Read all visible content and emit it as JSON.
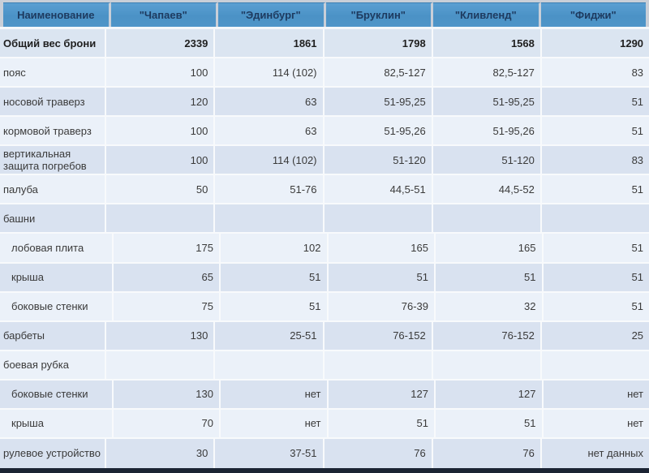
{
  "table": {
    "columns": [
      "Наименование",
      "\"Чапаев\"",
      "\"Эдинбург\"",
      "\"Бруклин\"",
      "\"Кливленд\"",
      "\"Фиджи\""
    ],
    "rows": [
      {
        "label": "Общий вес брони",
        "bold": true,
        "indent": false,
        "values": [
          "2339",
          "1861",
          "1798",
          "1568",
          "1290"
        ]
      },
      {
        "label": "пояс",
        "bold": false,
        "indent": false,
        "values": [
          "100",
          "114 (102)",
          "82,5-127",
          "82,5-127",
          "83"
        ]
      },
      {
        "label": "носовой траверз",
        "bold": false,
        "indent": false,
        "values": [
          "120",
          "63",
          "51-95,25",
          "51-95,25",
          "51"
        ]
      },
      {
        "label": "кормовой траверз",
        "bold": false,
        "indent": false,
        "values": [
          "100",
          "63",
          "51-95,26",
          "51-95,26",
          "51"
        ]
      },
      {
        "label": "вертикальная защита погребов",
        "bold": false,
        "indent": false,
        "values": [
          "100",
          "114 (102)",
          "51-120",
          "51-120",
          "83"
        ]
      },
      {
        "label": "палуба",
        "bold": false,
        "indent": false,
        "values": [
          "50",
          "51-76",
          "44,5-51",
          "44,5-52",
          "51"
        ]
      },
      {
        "label": "башни",
        "bold": false,
        "indent": false,
        "values": [
          "",
          "",
          "",
          "",
          ""
        ]
      },
      {
        "label": "лобовая плита",
        "bold": false,
        "indent": true,
        "values": [
          "175",
          "102",
          "165",
          "165",
          "51"
        ]
      },
      {
        "label": "крыша",
        "bold": false,
        "indent": true,
        "values": [
          "65",
          "51",
          "51",
          "51",
          "51"
        ]
      },
      {
        "label": "боковые стенки",
        "bold": false,
        "indent": true,
        "values": [
          "75",
          "51",
          "76-39",
          "32",
          "51"
        ]
      },
      {
        "label": "барбеты",
        "bold": false,
        "indent": false,
        "values": [
          "130",
          "25-51",
          "76-152",
          "76-152",
          "25"
        ]
      },
      {
        "label": "боевая рубка",
        "bold": false,
        "indent": false,
        "values": [
          "",
          "",
          "",
          "",
          ""
        ]
      },
      {
        "label": "боковые стенки",
        "bold": false,
        "indent": true,
        "values": [
          "130",
          "нет",
          "127",
          "127",
          "нет"
        ]
      },
      {
        "label": "крыша",
        "bold": false,
        "indent": true,
        "values": [
          "70",
          "нет",
          "51",
          "51",
          "нет"
        ]
      },
      {
        "label": "рулевое устройство",
        "bold": false,
        "indent": false,
        "values": [
          "30",
          "37-51",
          "76",
          "76",
          "нет данных"
        ]
      }
    ]
  },
  "colors": {
    "header_bg": "#4e95c8",
    "header_text": "#1d3a5f",
    "band_dark": "#d9e2f0",
    "band_light": "#ebf1f9",
    "separator": "#f8fafc",
    "slide_edge": "#c9cfd8",
    "bottom_bar": "#1b2433",
    "body_text": "#3a3a3a"
  }
}
